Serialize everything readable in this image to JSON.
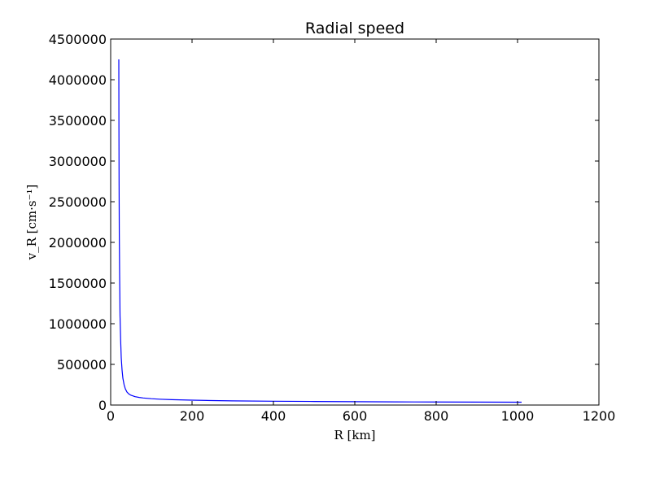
{
  "chart_data": {
    "type": "line",
    "title": "Radial speed",
    "xlabel": "R [km]",
    "ylabel": "v_R [cm·s⁻¹]",
    "xlim": [
      0,
      1200
    ],
    "ylim": [
      0,
      4500000
    ],
    "x_ticks": [
      "0",
      "200",
      "400",
      "600",
      "800",
      "1000",
      "1200"
    ],
    "y_ticks": [
      "0",
      "500000",
      "1000000",
      "1500000",
      "2000000",
      "2500000",
      "3000000",
      "3500000",
      "4000000",
      "4500000"
    ],
    "grid": false,
    "series": [
      {
        "color": "#0000ff",
        "x": [
          20,
          20.3,
          20.7,
          21.2,
          22,
          23,
          24.5,
          26,
          28,
          30,
          33,
          36,
          40,
          45,
          50,
          60,
          70,
          80,
          100,
          120,
          150,
          200,
          250,
          300,
          400,
          500,
          600,
          700,
          800,
          900,
          1000,
          1010
        ],
        "y": [
          4250000,
          3400000,
          2700000,
          2100000,
          1600000,
          1100000,
          800000,
          580000,
          430000,
          330000,
          250000,
          200000,
          160000,
          135000,
          120000,
          103000,
          94000,
          87000,
          78000,
          72000,
          66000,
          60000,
          55000,
          51000,
          47000,
          44000,
          41000,
          39000,
          37500,
          36000,
          35000,
          34800
        ]
      }
    ]
  }
}
